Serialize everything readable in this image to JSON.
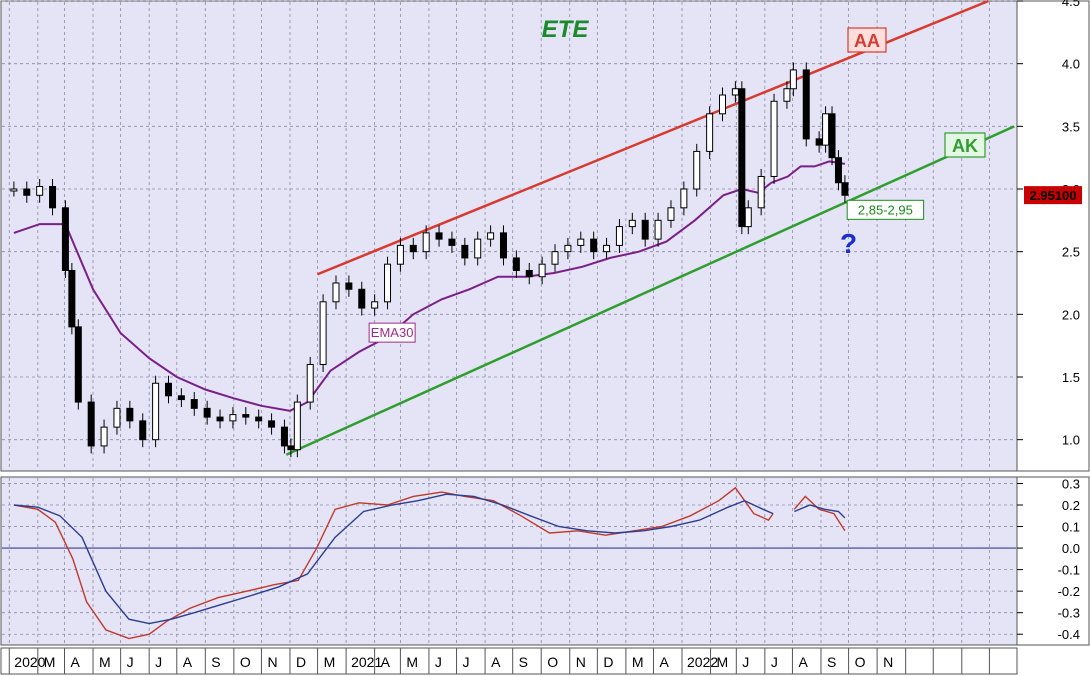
{
  "chart_data": [
    {
      "type": "candlestick",
      "title": "ETE",
      "x_axis": {
        "years": [
          "2020",
          "2021",
          "2022"
        ],
        "months": [
          "M",
          "A",
          "M",
          "J",
          "J",
          "A",
          "S",
          "O",
          "N",
          "D",
          "M",
          "A",
          "M",
          "J",
          "J",
          "A",
          "S",
          "O",
          "N",
          "D",
          "M",
          "A",
          "M",
          "J",
          "J",
          "A",
          "S",
          "O",
          "N"
        ]
      },
      "y_axis": {
        "ticks": [
          "1.0",
          "1.5",
          "2.0",
          "2.5",
          "3.0",
          "3.5",
          "4.0",
          "4.5"
        ],
        "ylim": [
          0.75,
          4.5
        ]
      },
      "grid": true,
      "price_series": [
        {
          "d": "2020-01-06",
          "c": 3.0
        },
        {
          "d": "2020-01-20",
          "c": 2.95
        },
        {
          "d": "2020-02-03",
          "c": 3.02
        },
        {
          "d": "2020-02-17",
          "c": 2.85
        },
        {
          "d": "2020-03-02",
          "c": 2.35
        },
        {
          "d": "2020-03-09",
          "c": 1.9
        },
        {
          "d": "2020-03-16",
          "c": 1.3
        },
        {
          "d": "2020-03-30",
          "c": 0.95
        },
        {
          "d": "2020-04-13",
          "c": 1.1
        },
        {
          "d": "2020-04-27",
          "c": 1.25
        },
        {
          "d": "2020-05-11",
          "c": 1.15
        },
        {
          "d": "2020-05-25",
          "c": 1.0
        },
        {
          "d": "2020-06-08",
          "c": 1.45
        },
        {
          "d": "2020-06-22",
          "c": 1.35
        },
        {
          "d": "2020-07-06",
          "c": 1.32
        },
        {
          "d": "2020-07-20",
          "c": 1.25
        },
        {
          "d": "2020-08-03",
          "c": 1.18
        },
        {
          "d": "2020-08-17",
          "c": 1.15
        },
        {
          "d": "2020-08-31",
          "c": 1.2
        },
        {
          "d": "2020-09-14",
          "c": 1.18
        },
        {
          "d": "2020-09-28",
          "c": 1.15
        },
        {
          "d": "2020-10-12",
          "c": 1.1
        },
        {
          "d": "2020-10-26",
          "c": 0.95
        },
        {
          "d": "2020-11-02",
          "c": 0.92
        },
        {
          "d": "2020-11-09",
          "c": 1.3
        },
        {
          "d": "2020-11-23",
          "c": 1.6
        },
        {
          "d": "2020-12-07",
          "c": 2.1
        },
        {
          "d": "2020-12-21",
          "c": 2.25
        },
        {
          "d": "2021-01-04",
          "c": 2.2
        },
        {
          "d": "2021-01-18",
          "c": 2.05
        },
        {
          "d": "2021-02-01",
          "c": 2.1
        },
        {
          "d": "2021-02-15",
          "c": 2.4
        },
        {
          "d": "2021-03-01",
          "c": 2.55
        },
        {
          "d": "2021-03-15",
          "c": 2.5
        },
        {
          "d": "2021-03-29",
          "c": 2.65
        },
        {
          "d": "2021-04-12",
          "c": 2.6
        },
        {
          "d": "2021-04-26",
          "c": 2.55
        },
        {
          "d": "2021-05-10",
          "c": 2.45
        },
        {
          "d": "2021-05-24",
          "c": 2.6
        },
        {
          "d": "2021-06-07",
          "c": 2.65
        },
        {
          "d": "2021-06-21",
          "c": 2.45
        },
        {
          "d": "2021-07-05",
          "c": 2.35
        },
        {
          "d": "2021-07-19",
          "c": 2.3
        },
        {
          "d": "2021-08-02",
          "c": 2.4
        },
        {
          "d": "2021-08-16",
          "c": 2.5
        },
        {
          "d": "2021-08-30",
          "c": 2.55
        },
        {
          "d": "2021-09-13",
          "c": 2.6
        },
        {
          "d": "2021-09-27",
          "c": 2.5
        },
        {
          "d": "2021-10-11",
          "c": 2.55
        },
        {
          "d": "2021-10-25",
          "c": 2.7
        },
        {
          "d": "2021-11-08",
          "c": 2.75
        },
        {
          "d": "2021-11-22",
          "c": 2.6
        },
        {
          "d": "2021-12-06",
          "c": 2.75
        },
        {
          "d": "2021-12-20",
          "c": 2.85
        },
        {
          "d": "2022-01-03",
          "c": 3.0
        },
        {
          "d": "2022-01-17",
          "c": 3.3
        },
        {
          "d": "2022-01-31",
          "c": 3.6
        },
        {
          "d": "2022-02-14",
          "c": 3.75
        },
        {
          "d": "2022-02-28",
          "c": 3.8
        },
        {
          "d": "2022-03-07",
          "c": 2.7
        },
        {
          "d": "2022-03-14",
          "c": 2.85
        },
        {
          "d": "2022-03-28",
          "c": 3.1
        },
        {
          "d": "2022-04-11",
          "c": 3.7
        },
        {
          "d": "2022-04-25",
          "c": 3.8
        },
        {
          "d": "2022-05-02",
          "c": 3.95
        },
        {
          "d": "2022-05-16",
          "c": 3.4
        },
        {
          "d": "2022-05-30",
          "c": 3.35
        },
        {
          "d": "2022-06-06",
          "c": 3.6
        },
        {
          "d": "2022-06-13",
          "c": 3.25
        },
        {
          "d": "2022-06-20",
          "c": 3.05
        },
        {
          "d": "2022-06-27",
          "c": 2.95
        }
      ],
      "ema30_series": [
        {
          "d": "2020-01-06",
          "v": 2.65
        },
        {
          "d": "2020-02-03",
          "v": 2.72
        },
        {
          "d": "2020-03-02",
          "v": 2.72
        },
        {
          "d": "2020-04-01",
          "v": 2.2
        },
        {
          "d": "2020-05-01",
          "v": 1.85
        },
        {
          "d": "2020-06-01",
          "v": 1.65
        },
        {
          "d": "2020-07-01",
          "v": 1.5
        },
        {
          "d": "2020-08-01",
          "v": 1.4
        },
        {
          "d": "2020-09-01",
          "v": 1.33
        },
        {
          "d": "2020-10-01",
          "v": 1.27
        },
        {
          "d": "2020-11-01",
          "v": 1.23
        },
        {
          "d": "2020-11-20",
          "v": 1.3
        },
        {
          "d": "2020-12-15",
          "v": 1.55
        },
        {
          "d": "2021-01-15",
          "v": 1.7
        },
        {
          "d": "2021-02-15",
          "v": 1.82
        },
        {
          "d": "2021-03-15",
          "v": 2.0
        },
        {
          "d": "2021-04-15",
          "v": 2.12
        },
        {
          "d": "2021-05-15",
          "v": 2.2
        },
        {
          "d": "2021-06-15",
          "v": 2.3
        },
        {
          "d": "2021-07-15",
          "v": 2.3
        },
        {
          "d": "2021-08-15",
          "v": 2.33
        },
        {
          "d": "2021-09-15",
          "v": 2.38
        },
        {
          "d": "2021-10-15",
          "v": 2.45
        },
        {
          "d": "2021-11-15",
          "v": 2.5
        },
        {
          "d": "2021-12-15",
          "v": 2.58
        },
        {
          "d": "2022-01-15",
          "v": 2.75
        },
        {
          "d": "2022-02-15",
          "v": 2.95
        },
        {
          "d": "2022-03-07",
          "v": 3.0
        },
        {
          "d": "2022-03-25",
          "v": 2.97
        },
        {
          "d": "2022-04-08",
          "v": 3.05
        },
        {
          "d": "2022-04-26",
          "v": 3.1
        },
        {
          "d": "2022-05-10",
          "v": 3.18
        },
        {
          "d": "2022-05-25",
          "v": 3.18
        },
        {
          "d": "2022-06-10",
          "v": 3.22
        },
        {
          "d": "2022-06-27",
          "v": 3.2
        }
      ],
      "trend_lines": [
        {
          "label": "AA",
          "color": "#d83a2f",
          "start": {
            "d": "2020-12-01",
            "v": 2.32
          },
          "end": {
            "d": "2022-11-30",
            "v": 4.5
          }
        },
        {
          "label": "AK",
          "color": "#2f9e2f",
          "start": {
            "d": "2020-10-28",
            "v": 0.88
          },
          "end": {
            "d": "2022-12-28",
            "v": 3.5
          }
        }
      ],
      "annotations": [
        {
          "text": "EMA30",
          "d": "2021-02-20",
          "v": 1.85,
          "color": "#a02a8c"
        },
        {
          "text": "2,85-2,95",
          "d": "2022-08-10",
          "v": 2.83,
          "color": "#1d8a1d"
        },
        {
          "text": "?",
          "d": "2022-07-01",
          "v": 2.57,
          "color": "#1b2fd0"
        }
      ],
      "last_price": "2.95100"
    },
    {
      "type": "line",
      "y_axis": {
        "ticks": [
          "0.3",
          "0.2",
          "0.1",
          "0.0",
          "-0.1",
          "-0.2",
          "-0.3",
          "-0.4"
        ],
        "ylim": [
          -0.45,
          0.33
        ]
      },
      "zero_line": true,
      "series": [
        {
          "color": "#c0392b",
          "points": [
            {
              "d": "2020-01-06",
              "v": 0.2
            },
            {
              "d": "2020-02-01",
              "v": 0.18
            },
            {
              "d": "2020-02-20",
              "v": 0.12
            },
            {
              "d": "2020-03-10",
              "v": -0.05
            },
            {
              "d": "2020-03-25",
              "v": -0.25
            },
            {
              "d": "2020-04-15",
              "v": -0.38
            },
            {
              "d": "2020-05-10",
              "v": -0.42
            },
            {
              "d": "2020-06-01",
              "v": -0.4
            },
            {
              "d": "2020-06-20",
              "v": -0.34
            },
            {
              "d": "2020-07-15",
              "v": -0.28
            },
            {
              "d": "2020-08-15",
              "v": -0.23
            },
            {
              "d": "2020-09-15",
              "v": -0.2
            },
            {
              "d": "2020-10-15",
              "v": -0.17
            },
            {
              "d": "2020-11-10",
              "v": -0.15
            },
            {
              "d": "2020-11-30",
              "v": 0.0
            },
            {
              "d": "2020-12-20",
              "v": 0.18
            },
            {
              "d": "2021-01-15",
              "v": 0.21
            },
            {
              "d": "2021-02-15",
              "v": 0.2
            },
            {
              "d": "2021-03-15",
              "v": 0.24
            },
            {
              "d": "2021-04-15",
              "v": 0.26
            },
            {
              "d": "2021-05-10",
              "v": 0.24
            },
            {
              "d": "2021-06-10",
              "v": 0.22
            },
            {
              "d": "2021-07-10",
              "v": 0.15
            },
            {
              "d": "2021-08-10",
              "v": 0.07
            },
            {
              "d": "2021-09-10",
              "v": 0.08
            },
            {
              "d": "2021-10-10",
              "v": 0.06
            },
            {
              "d": "2021-11-10",
              "v": 0.08
            },
            {
              "d": "2021-12-10",
              "v": 0.1
            },
            {
              "d": "2022-01-10",
              "v": 0.15
            },
            {
              "d": "2022-02-10",
              "v": 0.22
            },
            {
              "d": "2022-02-28",
              "v": 0.28
            },
            {
              "d": "2022-03-20",
              "v": 0.16
            },
            {
              "d": "2022-04-05",
              "v": 0.13
            },
            {
              "d": "2022-04-10",
              "v": 0.16
            },
            {
              "d": "2022-04-26",
              "v": null
            },
            {
              "d": "2022-05-03",
              "v": 0.18
            },
            {
              "d": "2022-05-15",
              "v": 0.24
            },
            {
              "d": "2022-05-30",
              "v": 0.18
            },
            {
              "d": "2022-06-15",
              "v": 0.16
            },
            {
              "d": "2022-06-27",
              "v": 0.08
            }
          ]
        },
        {
          "color": "#2c3e8f",
          "points": [
            {
              "d": "2020-01-06",
              "v": 0.2
            },
            {
              "d": "2020-02-01",
              "v": 0.19
            },
            {
              "d": "2020-02-25",
              "v": 0.15
            },
            {
              "d": "2020-03-20",
              "v": 0.05
            },
            {
              "d": "2020-04-15",
              "v": -0.2
            },
            {
              "d": "2020-05-10",
              "v": -0.33
            },
            {
              "d": "2020-06-01",
              "v": -0.35
            },
            {
              "d": "2020-06-25",
              "v": -0.33
            },
            {
              "d": "2020-07-20",
              "v": -0.3
            },
            {
              "d": "2020-08-20",
              "v": -0.26
            },
            {
              "d": "2020-09-20",
              "v": -0.22
            },
            {
              "d": "2020-10-20",
              "v": -0.18
            },
            {
              "d": "2020-11-20",
              "v": -0.12
            },
            {
              "d": "2020-12-20",
              "v": 0.05
            },
            {
              "d": "2021-01-20",
              "v": 0.17
            },
            {
              "d": "2021-02-20",
              "v": 0.2
            },
            {
              "d": "2021-03-20",
              "v": 0.22
            },
            {
              "d": "2021-04-20",
              "v": 0.25
            },
            {
              "d": "2021-05-20",
              "v": 0.24
            },
            {
              "d": "2021-06-20",
              "v": 0.2
            },
            {
              "d": "2021-07-20",
              "v": 0.15
            },
            {
              "d": "2021-08-20",
              "v": 0.1
            },
            {
              "d": "2021-09-20",
              "v": 0.08
            },
            {
              "d": "2021-10-20",
              "v": 0.07
            },
            {
              "d": "2021-11-20",
              "v": 0.08
            },
            {
              "d": "2021-12-20",
              "v": 0.1
            },
            {
              "d": "2022-01-20",
              "v": 0.13
            },
            {
              "d": "2022-02-20",
              "v": 0.19
            },
            {
              "d": "2022-03-10",
              "v": 0.22
            },
            {
              "d": "2022-03-30",
              "v": 0.18
            },
            {
              "d": "2022-04-10",
              "v": 0.16
            },
            {
              "d": "2022-04-26",
              "v": null
            },
            {
              "d": "2022-05-03",
              "v": 0.17
            },
            {
              "d": "2022-05-20",
              "v": 0.2
            },
            {
              "d": "2022-06-05",
              "v": 0.18
            },
            {
              "d": "2022-06-20",
              "v": 0.17
            },
            {
              "d": "2022-06-27",
              "v": 0.14
            }
          ]
        }
      ]
    }
  ]
}
